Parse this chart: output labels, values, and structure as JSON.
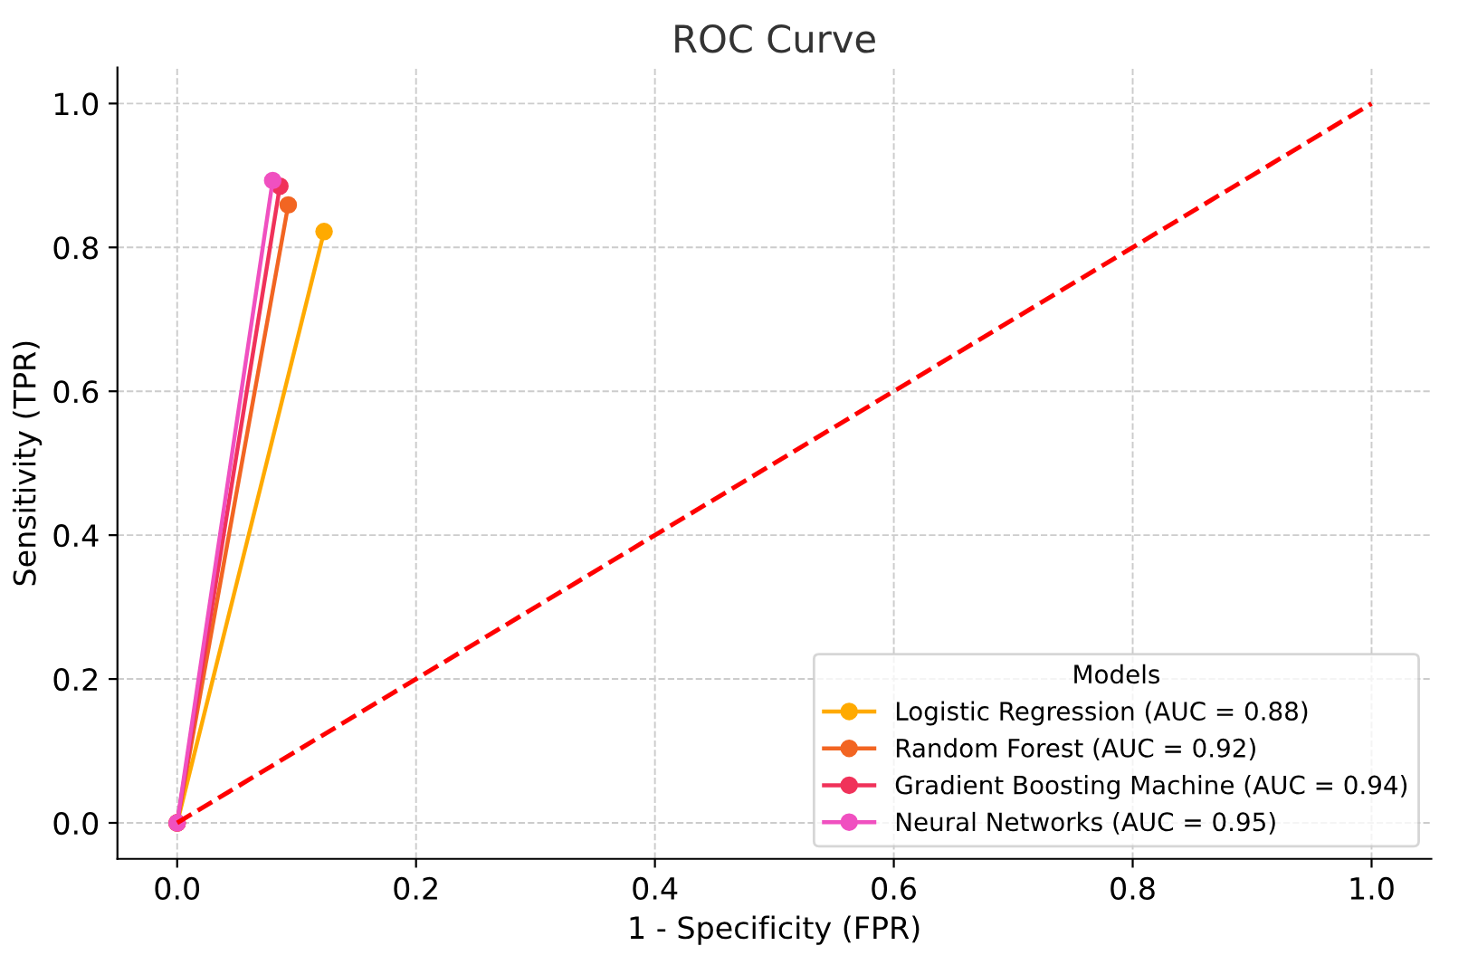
{
  "chart_data": {
    "type": "line",
    "title": "ROC Curve",
    "xlabel": "1 - Specificity (FPR)",
    "ylabel": "Sensitivity (TPR)",
    "legend_title": "Models",
    "legend": "bottom right",
    "grid": true,
    "marker": "circle",
    "xlim": [
      -0.05,
      1.05
    ],
    "ylim": [
      -0.05,
      1.05
    ],
    "xticks": [
      {
        "value": 0,
        "label": "0.0"
      },
      0.2,
      0.4,
      0.6,
      0.8,
      {
        "value": 1,
        "label": "1.0"
      }
    ],
    "yticks": [
      {
        "value": 0,
        "label": "0.0"
      },
      0.2,
      0.4,
      0.6,
      0.8,
      {
        "value": 1,
        "label": "1.0"
      }
    ],
    "series": [
      {
        "name": "Logistic Regression (AUC = 0.88)",
        "color": "#ffaa00",
        "x": [
          0,
          0.123
        ],
        "values": [
          0,
          0.822
        ]
      },
      {
        "name": "Random Forest (AUC = 0.92)",
        "color": "#f26522",
        "x": [
          0,
          0.093
        ],
        "values": [
          0,
          0.859
        ]
      },
      {
        "name": "Gradient Boosting Machine (AUC = 0.94)",
        "color": "#f0325a",
        "x": [
          0,
          0.086
        ],
        "values": [
          0,
          0.885
        ]
      },
      {
        "name": "Neural Networks (AUC = 0.95)",
        "color": "#f050c0",
        "x": [
          0,
          0.08
        ],
        "values": [
          0,
          0.893
        ]
      },
      {
        "color": "#ff0000",
        "x": [
          0,
          1
        ],
        "values": [
          0,
          1
        ],
        "marker": "none",
        "line_style": "dashed"
      }
    ]
  }
}
